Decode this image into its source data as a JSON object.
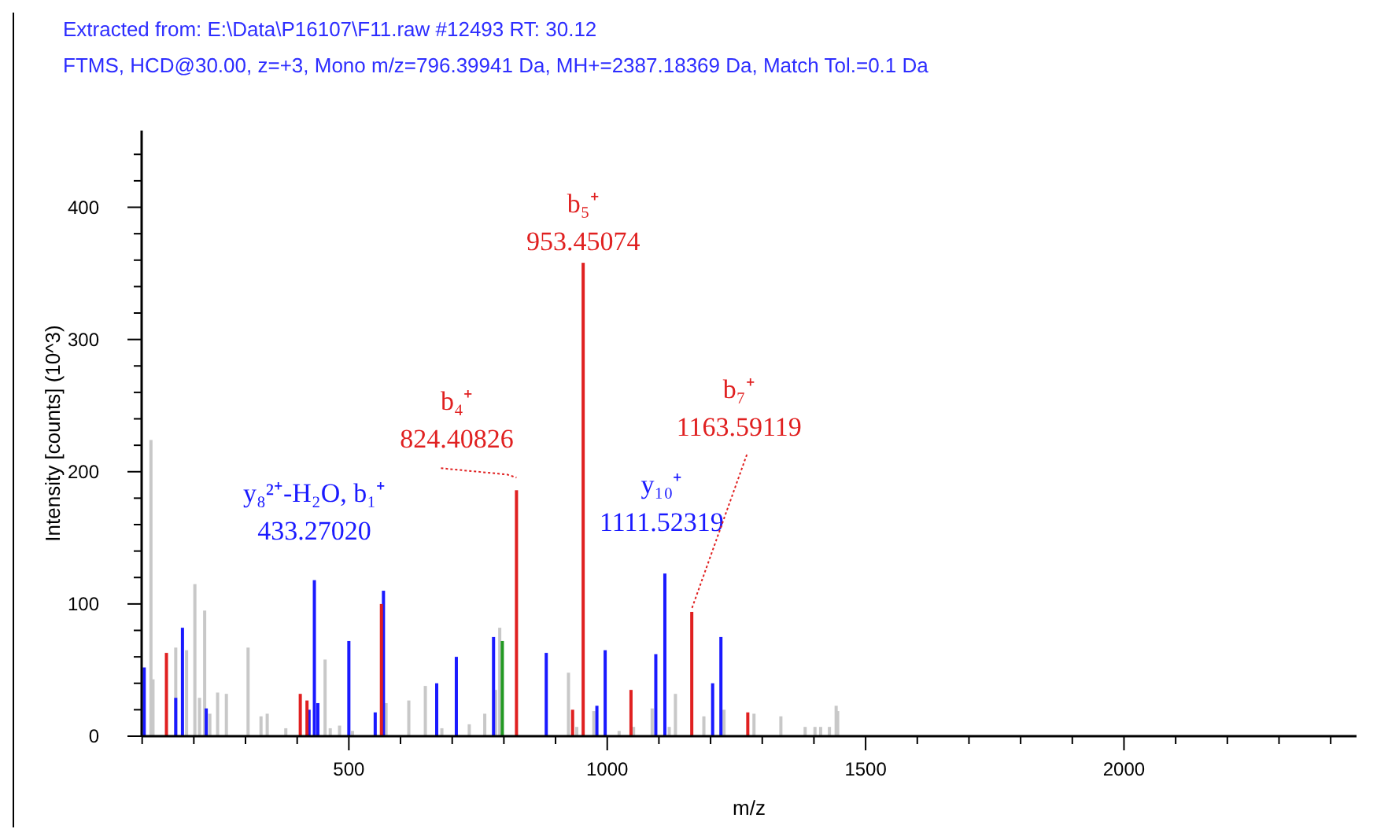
{
  "chart_data": {
    "type": "bar",
    "title": "Extracted from: E:\\Data\\P16107\\F11.raw  #12493   RT: 30.12",
    "subtitle": "FTMS, HCD@30.00, z=+3, Mono m/z=796.39941 Da, MH+=2387.18369 Da, Match Tol.=0.1 Da",
    "xlabel": "m/z",
    "ylabel": "Intensity [counts] (10^3)",
    "xlim": [
      99,
      2450
    ],
    "ylim": [
      0,
      458
    ],
    "xticks": [
      {
        "value": 100,
        "label": null
      },
      {
        "value": 200,
        "label": null
      },
      {
        "value": 300,
        "label": null
      },
      {
        "value": 400,
        "label": null
      },
      500,
      {
        "value": 600,
        "label": null
      },
      {
        "value": 700,
        "label": null
      },
      {
        "value": 800,
        "label": null
      },
      {
        "value": 900,
        "label": null
      },
      1000,
      {
        "value": 1100,
        "label": null
      },
      {
        "value": 1200,
        "label": null
      },
      {
        "value": 1300,
        "label": null
      },
      {
        "value": 1400,
        "label": null
      },
      1500,
      {
        "value": 1600,
        "label": null
      },
      {
        "value": 1700,
        "label": null
      },
      {
        "value": 1800,
        "label": null
      },
      {
        "value": 1900,
        "label": null
      },
      2000,
      {
        "value": 2100,
        "label": null
      },
      {
        "value": 2200,
        "label": null
      },
      {
        "value": 2300,
        "label": null
      },
      {
        "value": 2400,
        "label": null
      }
    ],
    "yticks": [
      0,
      {
        "value": 20,
        "label": null
      },
      {
        "value": 40,
        "label": null
      },
      {
        "value": 60,
        "label": null
      },
      {
        "value": 80,
        "label": null
      },
      100,
      {
        "value": 120,
        "label": null
      },
      {
        "value": 140,
        "label": null
      },
      {
        "value": 160,
        "label": null
      },
      {
        "value": 180,
        "label": null
      },
      200,
      {
        "value": 220,
        "label": null
      },
      {
        "value": 240,
        "label": null
      },
      {
        "value": 260,
        "label": null
      },
      {
        "value": 280,
        "label": null
      },
      300,
      {
        "value": 320,
        "label": null
      },
      {
        "value": 340,
        "label": null
      },
      {
        "value": 360,
        "label": null
      },
      {
        "value": 380,
        "label": null
      },
      400,
      {
        "value": 420,
        "label": null
      },
      {
        "value": 440,
        "label": null
      }
    ],
    "grid": false,
    "series": [
      {
        "color": "#c8c8c8",
        "x": [
          117,
          121,
          165,
          186,
          202,
          211,
          221,
          231,
          246,
          263,
          305,
          330,
          342,
          378,
          454,
          464,
          482,
          507,
          572,
          616,
          648,
          680,
          733,
          763,
          784,
          792,
          925,
          941,
          974,
          1023,
          1051,
          1087,
          1120,
          1132,
          1187,
          1226,
          1284,
          1336,
          1383,
          1402,
          1413,
          1430,
          1443,
          1446
        ],
        "values": [
          224,
          43,
          67,
          65,
          115,
          29,
          95,
          17,
          33,
          32,
          67,
          15,
          17,
          6,
          58,
          6,
          8,
          4,
          25,
          27,
          38,
          6,
          9,
          17,
          35,
          82,
          48,
          7,
          19,
          4,
          7,
          21,
          7,
          32,
          15,
          20,
          17,
          15,
          7,
          7,
          7,
          7,
          23,
          19
        ]
      },
      {
        "color": "#229922",
        "x": [
          797
        ],
        "values": [
          72
        ]
      },
      {
        "color": "#1a1aff",
        "x": [
          104,
          165,
          178,
          224,
          423,
          433.2702,
          440,
          500,
          551,
          567,
          670,
          708,
          780,
          882,
          980,
          996,
          1094,
          1111.52319,
          1204,
          1220
        ],
        "values": [
          52,
          29,
          82,
          21,
          20,
          118,
          25,
          72,
          18,
          110,
          40,
          60,
          75,
          63,
          23,
          65,
          62,
          123,
          40,
          75
        ]
      },
      {
        "color": "#e02020",
        "x": [
          147,
          406,
          419,
          563,
          824.40826,
          933,
          953.45074,
          1046,
          1163.59119,
          1272
        ],
        "values": [
          63,
          32,
          27,
          100,
          186,
          20,
          358,
          35,
          94,
          18
        ]
      }
    ],
    "annotations": [
      {
        "text": "y₈²⁺-H₂O, b₁⁺\n433.27020",
        "x": 433.2702,
        "y": 118
      },
      {
        "text": "b₄⁺\n824.40826",
        "x": 824.40826,
        "y": 186
      },
      {
        "text": "b₅⁺\n953.45074",
        "x": 953.45074,
        "y": 358
      },
      {
        "text": "y₁₀⁺\n1111.52319",
        "x": 1111.52319,
        "y": 123
      },
      {
        "text": "b₇⁺\n1163.59119",
        "x": 1163.59119,
        "y": 94
      }
    ]
  }
}
